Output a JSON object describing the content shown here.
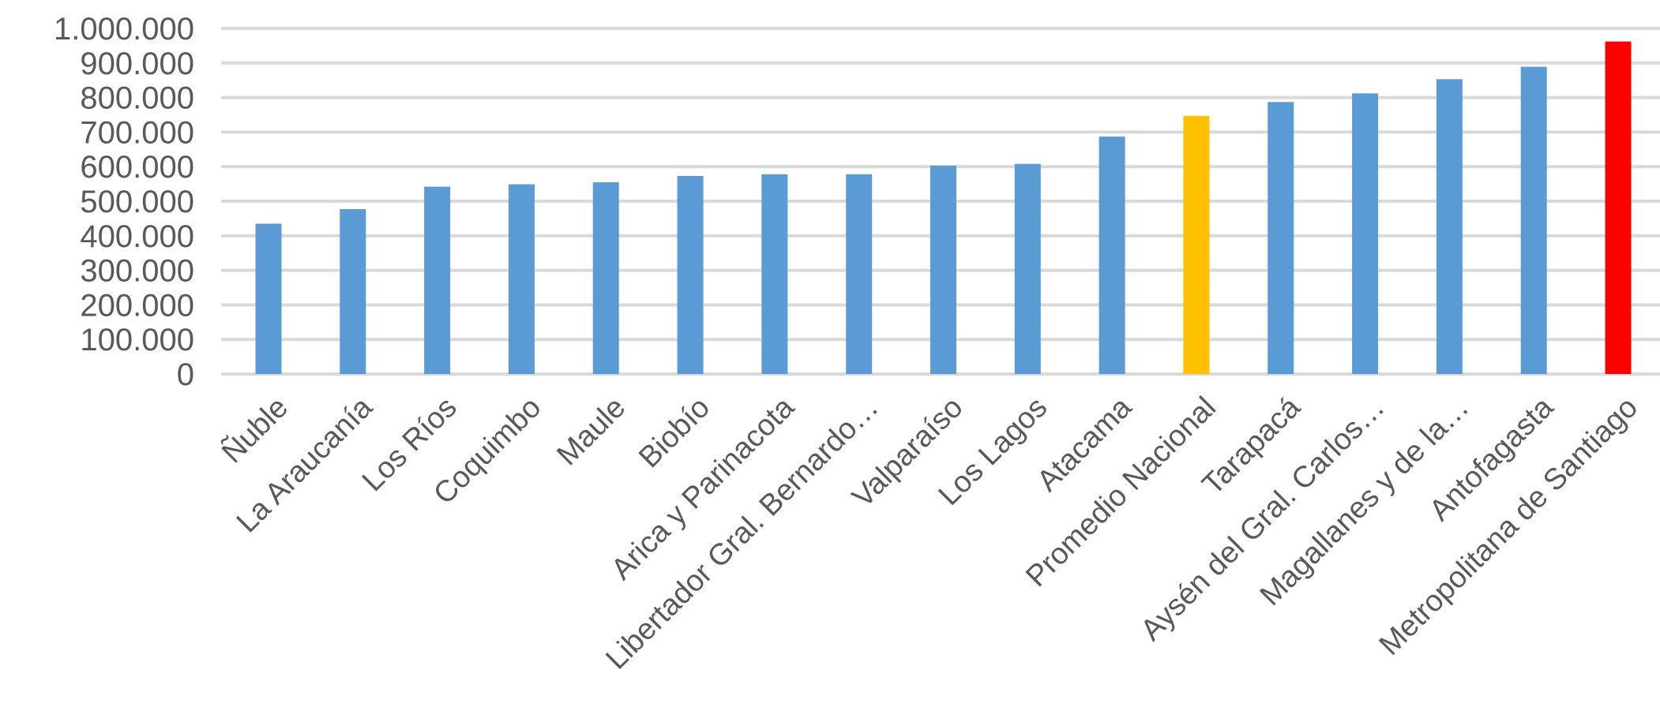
{
  "chart_data": {
    "type": "bar",
    "title": "",
    "xlabel": "",
    "ylabel": "",
    "ylim": [
      0,
      1000000
    ],
    "yticks": [
      0,
      100000,
      200000,
      300000,
      400000,
      500000,
      600000,
      700000,
      800000,
      900000,
      1000000
    ],
    "ytick_labels": [
      "0",
      "100.000",
      "200.000",
      "300.000",
      "400.000",
      "500.000",
      "600.000",
      "700.000",
      "800.000",
      "900.000",
      "1.000.000"
    ],
    "grid": true,
    "legend": "none",
    "categories": [
      "Ñuble",
      "La Araucanía",
      "Los Ríos",
      "Coquimbo",
      "Maule",
      "Biobío",
      "Arica y Parinacota",
      "Libertador Gral. Bernardo…",
      "Valparaíso",
      "Los Lagos",
      "Atacama",
      "Promedio Nacional",
      "Tarapacá",
      "Aysén del Gral. Carlos…",
      "Magallanes y de la…",
      "Antofagasta",
      "Metropolitana de Santiago"
    ],
    "values": [
      435000,
      477000,
      542000,
      549000,
      555000,
      573000,
      578000,
      578000,
      603000,
      608000,
      687000,
      747000,
      787000,
      812000,
      853000,
      889000,
      962000
    ],
    "bar_colors": [
      "#5b9bd5",
      "#5b9bd5",
      "#5b9bd5",
      "#5b9bd5",
      "#5b9bd5",
      "#5b9bd5",
      "#5b9bd5",
      "#5b9bd5",
      "#5b9bd5",
      "#5b9bd5",
      "#5b9bd5",
      "#ffc000",
      "#5b9bd5",
      "#5b9bd5",
      "#5b9bd5",
      "#5b9bd5",
      "#ff0000"
    ]
  },
  "colors": {
    "default_bar": "#5b9bd5",
    "highlight_average": "#ffc000",
    "highlight_max": "#ff0000",
    "gridline": "#d9d9d9",
    "text": "#595959"
  }
}
